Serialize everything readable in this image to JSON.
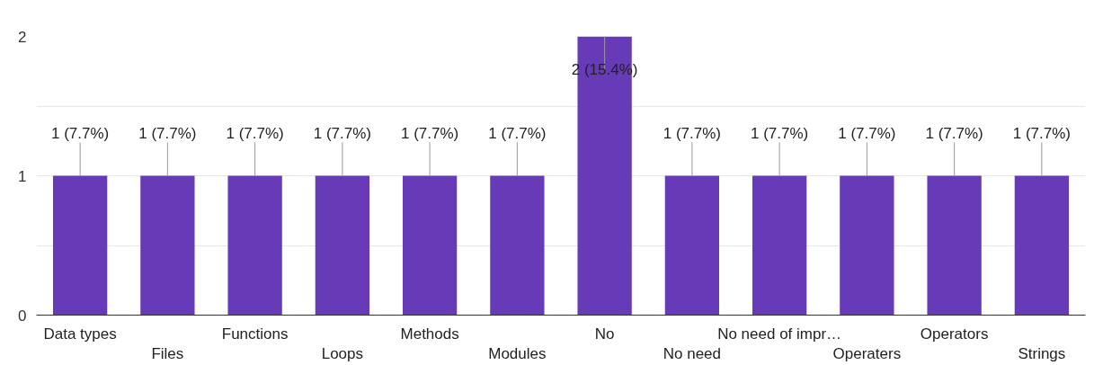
{
  "chart_data": {
    "type": "bar",
    "categories": [
      "Data types",
      "Files",
      "Functions",
      "Loops",
      "Methods",
      "Modules",
      "No",
      "No need",
      "No need of impr…",
      "Operaters",
      "Operators",
      "Strings"
    ],
    "values": [
      1,
      1,
      1,
      1,
      1,
      1,
      2,
      1,
      1,
      1,
      1,
      1
    ],
    "value_labels": [
      "1 (7.7%)",
      "1 (7.7%)",
      "1 (7.7%)",
      "1 (7.7%)",
      "1 (7.7%)",
      "1 (7.7%)",
      "2 (15.4%)",
      "1 (7.7%)",
      "1 (7.7%)",
      "1 (7.7%)",
      "1 (7.7%)",
      "1 (7.7%)"
    ],
    "color": "#673ab7",
    "ylim": [
      0,
      2
    ],
    "yticks": [
      0,
      {
        "value": 0.5,
        "label": null
      },
      1,
      {
        "value": 1.5,
        "label": null
      },
      2
    ],
    "grid": "y"
  }
}
